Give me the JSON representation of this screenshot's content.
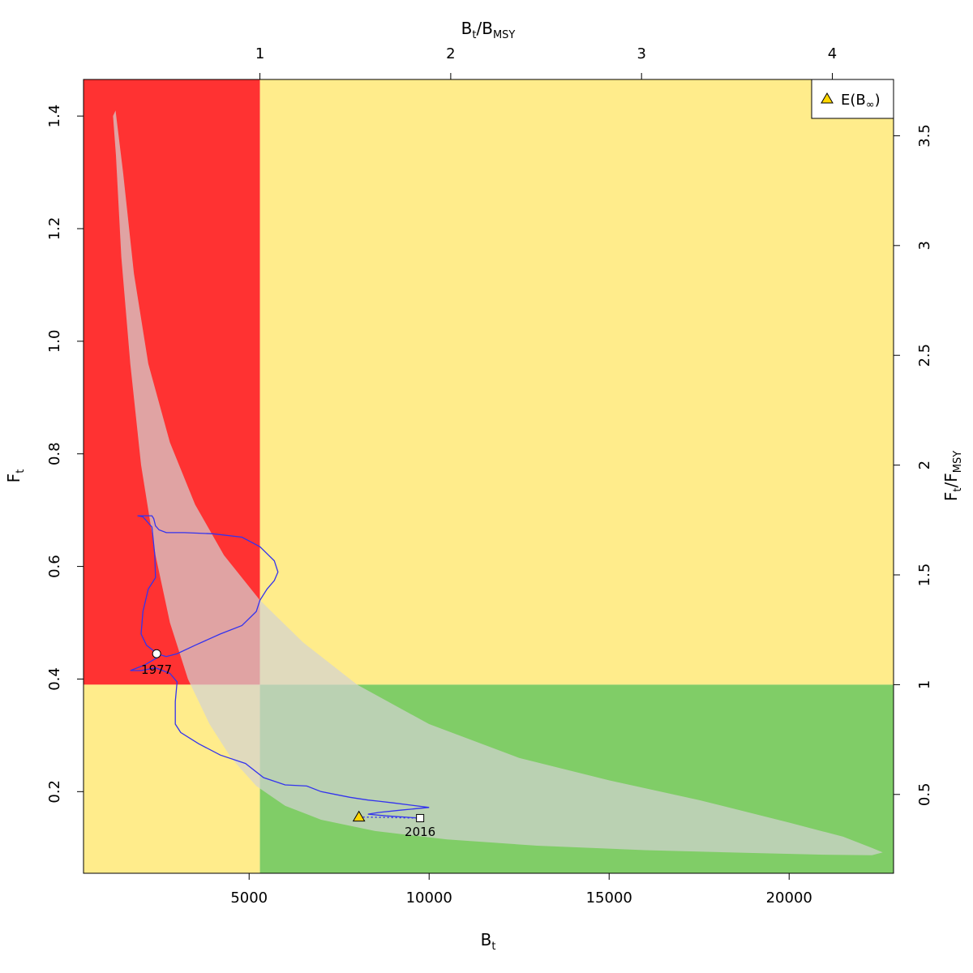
{
  "chart_data": {
    "type": "line",
    "title": "",
    "xlabel": "B",
    "xlabel_sub": "t",
    "ylabel": "F",
    "ylabel_sub": "t",
    "top_axis_label": {
      "num": "B",
      "num_sub": "t",
      "den": "B",
      "den_sub": "MSY"
    },
    "right_axis_label": {
      "num": "F",
      "num_sub": "t",
      "den": "F",
      "den_sub": "MSY"
    },
    "xlim": [
      400,
      22900
    ],
    "ylim": [
      0.055,
      1.465
    ],
    "x_ticks": [
      5000,
      10000,
      15000,
      20000
    ],
    "x_tick_labels": [
      "5000",
      "10000",
      "15000",
      "20000"
    ],
    "y_ticks": [
      0.2,
      0.4,
      0.6,
      0.8,
      1.0,
      1.2,
      1.4
    ],
    "y_tick_labels": [
      "0.2",
      "0.4",
      "0.6",
      "0.8",
      "1.0",
      "1.2",
      "1.4"
    ],
    "top_ticks": [
      1,
      2,
      3,
      4
    ],
    "top_tick_labels": [
      "1",
      "2",
      "3",
      "4"
    ],
    "right_ticks": [
      0.5,
      1,
      1.5,
      2,
      2.5,
      3,
      3.5
    ],
    "right_tick_labels": [
      "0.5",
      "1",
      "1.5",
      "2",
      "2.5",
      "3",
      "3.5"
    ],
    "bmsy": 5300,
    "fmsy": 0.39,
    "grid": false,
    "zones": {
      "red": "#ff3232",
      "yellow": "#ffec8b",
      "green": "#80cd67"
    },
    "series_color": "#3333ee",
    "ellipse_color": "#d3d3d3",
    "ellipse": {
      "outer": [
        [
          1290,
          1.41
        ],
        [
          1500,
          1.3
        ],
        [
          1800,
          1.12
        ],
        [
          2200,
          0.96
        ],
        [
          2800,
          0.82
        ],
        [
          3500,
          0.71
        ],
        [
          4300,
          0.62
        ],
        [
          5300,
          0.54
        ],
        [
          6500,
          0.465
        ],
        [
          8000,
          0.39
        ],
        [
          10000,
          0.32
        ],
        [
          12500,
          0.26
        ],
        [
          15000,
          0.22
        ],
        [
          17500,
          0.185
        ],
        [
          20000,
          0.145
        ],
        [
          21500,
          0.12
        ],
        [
          22300,
          0.1
        ],
        [
          22600,
          0.092
        ]
      ],
      "inner": [
        [
          22600,
          0.092
        ],
        [
          22300,
          0.087
        ],
        [
          21000,
          0.088
        ],
        [
          19000,
          0.091
        ],
        [
          16000,
          0.096
        ],
        [
          13000,
          0.104
        ],
        [
          10500,
          0.115
        ],
        [
          8500,
          0.13
        ],
        [
          7000,
          0.15
        ],
        [
          6000,
          0.175
        ],
        [
          5200,
          0.21
        ],
        [
          4500,
          0.26
        ],
        [
          3900,
          0.32
        ],
        [
          3300,
          0.4
        ],
        [
          2800,
          0.5
        ],
        [
          2400,
          0.62
        ],
        [
          2000,
          0.78
        ],
        [
          1700,
          0.96
        ],
        [
          1450,
          1.15
        ],
        [
          1300,
          1.33
        ],
        [
          1220,
          1.4
        ],
        [
          1290,
          1.41
        ]
      ]
    },
    "trajectory": [
      [
        2430,
        0.445
      ],
      [
        2700,
        0.44
      ],
      [
        3000,
        0.445
      ],
      [
        3500,
        0.46
      ],
      [
        4200,
        0.48
      ],
      [
        4800,
        0.495
      ],
      [
        5200,
        0.52
      ],
      [
        5300,
        0.54
      ],
      [
        5500,
        0.56
      ],
      [
        5700,
        0.575
      ],
      [
        5800,
        0.59
      ],
      [
        5700,
        0.61
      ],
      [
        5300,
        0.635
      ],
      [
        4800,
        0.652
      ],
      [
        4000,
        0.658
      ],
      [
        3200,
        0.66
      ],
      [
        2700,
        0.66
      ],
      [
        2500,
        0.665
      ],
      [
        2400,
        0.672
      ],
      [
        2350,
        0.685
      ],
      [
        2300,
        0.69
      ],
      [
        2100,
        0.69
      ],
      [
        1900,
        0.69
      ],
      [
        2050,
        0.688
      ],
      [
        2300,
        0.67
      ],
      [
        2380,
        0.62
      ],
      [
        2400,
        0.58
      ],
      [
        2200,
        0.56
      ],
      [
        2050,
        0.52
      ],
      [
        2000,
        0.48
      ],
      [
        2150,
        0.46
      ],
      [
        2350,
        0.45
      ],
      [
        2500,
        0.44
      ],
      [
        2100,
        0.425
      ],
      [
        1700,
        0.415
      ],
      [
        2000,
        0.415
      ],
      [
        2400,
        0.42
      ],
      [
        2800,
        0.41
      ],
      [
        3000,
        0.395
      ],
      [
        2950,
        0.36
      ],
      [
        2950,
        0.32
      ],
      [
        3100,
        0.305
      ],
      [
        3600,
        0.285
      ],
      [
        4200,
        0.265
      ],
      [
        4900,
        0.25
      ],
      [
        5400,
        0.225
      ],
      [
        6000,
        0.212
      ],
      [
        6600,
        0.21
      ],
      [
        7000,
        0.2
      ],
      [
        7400,
        0.195
      ],
      [
        7800,
        0.19
      ],
      [
        8000,
        0.188
      ],
      [
        8300,
        0.185
      ],
      [
        8600,
        0.183
      ],
      [
        9000,
        0.18
      ],
      [
        9500,
        0.176
      ],
      [
        10000,
        0.172
      ],
      [
        9200,
        0.167
      ],
      [
        8600,
        0.163
      ],
      [
        8300,
        0.16
      ],
      [
        8800,
        0.157
      ],
      [
        9300,
        0.155
      ],
      [
        9750,
        0.153
      ]
    ],
    "point_start": {
      "x": 2430,
      "y": 0.445,
      "label": "1977"
    },
    "point_end": {
      "x": 9750,
      "y": 0.153,
      "label": "2016"
    },
    "expected_point": {
      "x": 8050,
      "y": 0.155
    },
    "legend": {
      "position": "top-right",
      "label": "E(B",
      "label_sym": "∞",
      "label_close": ")",
      "marker_color": "#ffd700"
    }
  }
}
